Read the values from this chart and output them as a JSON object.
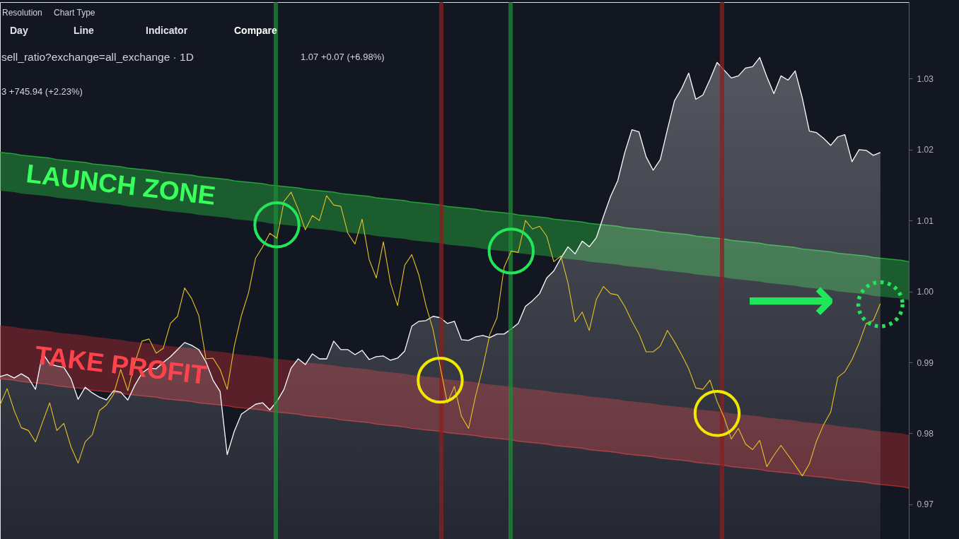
{
  "chart_data": {
    "type": "line",
    "categories": [
      null,
      null,
      null,
      null,
      null,
      null,
      null,
      null,
      null,
      null,
      null,
      null,
      null,
      null,
      null,
      null,
      null,
      null,
      null,
      null,
      null,
      null,
      null,
      null,
      null,
      null,
      null,
      null,
      null,
      null,
      null,
      null,
      null,
      null,
      null,
      null,
      null,
      null,
      null,
      null,
      null,
      null,
      null,
      null,
      null,
      null,
      null,
      null,
      null,
      null,
      null,
      null,
      null,
      null,
      null,
      null,
      null,
      null,
      null,
      null,
      null,
      null,
      null,
      null,
      null,
      null,
      null,
      null,
      null,
      null,
      null,
      null,
      null,
      null,
      null,
      null,
      null,
      null,
      null,
      null,
      null,
      null,
      null,
      null,
      null,
      null,
      null,
      null,
      null,
      null,
      null,
      null,
      null,
      null,
      null,
      null,
      null,
      null,
      null,
      null,
      null,
      null,
      null,
      null,
      null,
      null,
      null,
      null,
      null,
      null,
      null,
      null,
      null,
      null,
      null,
      null,
      null,
      null,
      null,
      null,
      null,
      null,
      null,
      null,
      null,
      null,
      null,
      null,
      null
    ],
    "ylim": [
      0.9648,
      1.0408
    ],
    "yticks": [
      0.97,
      0.98,
      0.99,
      {
        "value": 1,
        "label": "1.00"
      },
      1.01,
      1.02,
      1.03
    ],
    "tick_labels": "y",
    "series": [
      {
        "type": "area",
        "color": "#ffffff",
        "values": [
          0.988,
          0.9883,
          0.9878,
          0.9884,
          0.9878,
          0.9862,
          0.9913,
          0.9898,
          0.9895,
          0.9893,
          0.9877,
          0.9848,
          0.9865,
          0.9857,
          0.9851,
          0.9847,
          0.986,
          0.9858,
          0.9847,
          0.9868,
          0.9885,
          0.9892,
          0.9891,
          0.99,
          0.9908,
          0.9918,
          0.9928,
          0.9924,
          0.9918,
          0.9901,
          0.9875,
          0.9859,
          0.977,
          0.9803,
          0.9827,
          0.9834,
          0.9841,
          0.9843,
          0.9833,
          0.9845,
          0.9862,
          0.9892,
          0.9905,
          0.9897,
          0.9912,
          0.9905,
          0.9905,
          0.993,
          0.9918,
          0.9918,
          0.9911,
          0.9917,
          0.9904,
          0.9908,
          0.9909,
          0.9903,
          0.9906,
          0.9916,
          0.9951,
          0.9958,
          0.9959,
          0.9965,
          0.9963,
          0.9955,
          0.9958,
          0.9932,
          0.9931,
          0.9936,
          0.9938,
          0.9935,
          0.994,
          0.994,
          0.9947,
          0.9955,
          0.9979,
          0.9987,
          0.9997,
          1.0019,
          1.0029,
          1.0047,
          1.0063,
          1.0053,
          1.0071,
          1.0063,
          1.0076,
          1.0106,
          1.0134,
          1.0156,
          1.0196,
          1.0228,
          1.0225,
          1.019,
          1.0171,
          1.0186,
          1.0228,
          1.0269,
          1.0286,
          1.0308,
          1.0271,
          1.0277,
          1.0299,
          1.0323,
          1.0312,
          1.0301,
          1.0304,
          1.0315,
          1.0317,
          1.033,
          1.0303,
          1.0279,
          1.0304,
          1.0298,
          1.0311,
          1.0273,
          1.0226,
          1.0224,
          1.0216,
          1.0206,
          1.0218,
          1.0221,
          1.0183,
          1.02,
          1.0199,
          1.0192,
          1.0196,
          null,
          null,
          null,
          null
        ]
      },
      {
        "color": "#e6c229",
        "values": [
          0.984,
          0.9863,
          0.9832,
          0.9808,
          0.9804,
          0.9788,
          0.9816,
          0.9843,
          0.9804,
          0.9814,
          0.9781,
          0.9758,
          0.9788,
          0.9798,
          0.9832,
          0.984,
          0.9855,
          0.989,
          0.986,
          0.99,
          0.993,
          0.9933,
          0.9913,
          0.992,
          0.9955,
          0.9965,
          1.0005,
          0.999,
          0.9966,
          0.9905,
          0.9906,
          0.989,
          0.9862,
          0.9923,
          0.9966,
          0.9998,
          1.0047,
          1.0063,
          1.0082,
          1.0075,
          1.0127,
          1.014,
          1.0116,
          1.0087,
          1.0107,
          1.01,
          1.0135,
          1.0122,
          1.012,
          1.0082,
          1.0067,
          1.0102,
          1.0045,
          1.0019,
          1.007,
          1.0012,
          0.998,
          1.0037,
          1.0052,
          1.0023,
          0.998,
          0.9946,
          0.9894,
          0.9843,
          0.9866,
          0.9824,
          0.9807,
          0.9853,
          0.9893,
          0.994,
          0.9963,
          1.0034,
          1.0057,
          1.0055,
          1.01,
          1.0088,
          1.0092,
          1.0078,
          1.0042,
          1.005,
          1.0012,
          0.9957,
          0.9971,
          0.9945,
          0.9989,
          1.0007,
          0.9997,
          0.9995,
          0.9979,
          0.9958,
          0.994,
          0.9915,
          0.9915,
          0.9923,
          0.9945,
          0.9929,
          0.9911,
          0.9891,
          0.9864,
          0.9862,
          0.9875,
          0.9845,
          0.9822,
          0.9792,
          0.9807,
          0.9785,
          0.9777,
          0.979,
          0.9753,
          0.9769,
          0.9783,
          0.9769,
          0.9755,
          0.974,
          0.9757,
          0.9789,
          0.9812,
          0.983,
          0.9879,
          0.9887,
          0.9904,
          0.9927,
          0.9955,
          0.9959,
          0.9983,
          null,
          null,
          null,
          null
        ]
      },
      {
        "name": "LAUNCH ZONE",
        "color": "#24a33a",
        "values": [
          1.0196,
          1.0195,
          1.0194,
          1.0192,
          1.0191,
          1.019,
          1.0189,
          1.0188,
          1.0186,
          1.0185,
          1.0184,
          1.0183,
          1.0182,
          1.018,
          1.0179,
          1.0178,
          1.0177,
          1.0176,
          1.0174,
          1.0173,
          1.0172,
          1.0171,
          1.017,
          1.0168,
          1.0167,
          1.0166,
          1.0165,
          1.0164,
          1.0162,
          1.0161,
          1.016,
          1.0159,
          1.0158,
          1.0156,
          1.0155,
          1.0154,
          1.0153,
          1.0152,
          1.015,
          1.0149,
          1.0148,
          1.0147,
          1.0146,
          1.0144,
          1.0143,
          1.0142,
          1.0141,
          1.014,
          1.0138,
          1.0137,
          1.0136,
          1.0135,
          1.0134,
          1.0132,
          1.0131,
          1.013,
          1.0129,
          1.0128,
          1.0126,
          1.0125,
          1.0124,
          1.0123,
          1.0122,
          1.012,
          1.0119,
          1.0118,
          1.0117,
          1.0116,
          1.0114,
          1.0113,
          1.0112,
          1.0111,
          1.011,
          1.0108,
          1.0107,
          1.0106,
          1.0105,
          1.0104,
          1.0102,
          1.0101,
          1.01,
          1.0099,
          1.0098,
          1.0096,
          1.0095,
          1.0094,
          1.0093,
          1.0092,
          1.009,
          1.0089,
          1.0088,
          1.0087,
          1.0086,
          1.0084,
          1.0083,
          1.0082,
          1.0081,
          1.008,
          1.0078,
          1.0077,
          1.0076,
          1.0075,
          1.0074,
          1.0072,
          1.0071,
          1.007,
          1.0069,
          1.0068,
          1.0066,
          1.0065,
          1.0064,
          1.0063,
          1.0062,
          1.006,
          1.0059,
          1.0058,
          1.0057,
          1.0056,
          1.0054,
          1.0053,
          1.0052,
          1.0051,
          1.005,
          1.0048,
          1.0047,
          1.0046,
          1.0045,
          1.0044,
          1.0042
        ],
        "upper": [
          1.0196,
          1.0195,
          1.0194,
          1.0192,
          1.0191,
          1.019,
          1.0189,
          1.0188,
          1.0186,
          1.0185,
          1.0184,
          1.0183,
          1.0182,
          1.018,
          1.0179,
          1.0178,
          1.0177,
          1.0176,
          1.0174,
          1.0173,
          1.0172,
          1.0171,
          1.017,
          1.0168,
          1.0167,
          1.0166,
          1.0165,
          1.0164,
          1.0162,
          1.0161,
          1.016,
          1.0159,
          1.0158,
          1.0156,
          1.0155,
          1.0154,
          1.0153,
          1.0152,
          1.015,
          1.0149,
          1.0148,
          1.0147,
          1.0146,
          1.0144,
          1.0143,
          1.0142,
          1.0141,
          1.014,
          1.0138,
          1.0137,
          1.0136,
          1.0135,
          1.0134,
          1.0132,
          1.0131,
          1.013,
          1.0129,
          1.0128,
          1.0126,
          1.0125,
          1.0124,
          1.0123,
          1.0122,
          1.012,
          1.0119,
          1.0118,
          1.0117,
          1.0116,
          1.0114,
          1.0113,
          1.0112,
          1.0111,
          1.011,
          1.0108,
          1.0107,
          1.0106,
          1.0105,
          1.0104,
          1.0102,
          1.0101,
          1.01,
          1.0099,
          1.0098,
          1.0096,
          1.0095,
          1.0094,
          1.0093,
          1.0092,
          1.009,
          1.0089,
          1.0088,
          1.0087,
          1.0086,
          1.0084,
          1.0083,
          1.0082,
          1.0081,
          1.008,
          1.0078,
          1.0077,
          1.0076,
          1.0075,
          1.0074,
          1.0072,
          1.0071,
          1.007,
          1.0069,
          1.0068,
          1.0066,
          1.0065,
          1.0064,
          1.0063,
          1.0062,
          1.006,
          1.0059,
          1.0058,
          1.0057,
          1.0056,
          1.0054,
          1.0053,
          1.0052,
          1.0051,
          1.005,
          1.0048,
          1.0047,
          1.0046,
          1.0045,
          1.0044,
          1.0042
        ],
        "lower": [
          1.0142,
          1.0141,
          1.014,
          1.0138,
          1.0137,
          1.0136,
          1.0135,
          1.0134,
          1.0132,
          1.0131,
          1.013,
          1.0129,
          1.0128,
          1.0126,
          1.0125,
          1.0124,
          1.0123,
          1.0122,
          1.012,
          1.0119,
          1.0118,
          1.0117,
          1.0116,
          1.0114,
          1.0113,
          1.0112,
          1.0111,
          1.011,
          1.0108,
          1.0107,
          1.0106,
          1.0105,
          1.0104,
          1.0102,
          1.0101,
          1.01,
          1.0099,
          1.0098,
          1.0096,
          1.0095,
          1.0094,
          1.0093,
          1.0092,
          1.009,
          1.0089,
          1.0088,
          1.0087,
          1.0086,
          1.0084,
          1.0083,
          1.0082,
          1.0081,
          1.008,
          1.0078,
          1.0077,
          1.0076,
          1.0075,
          1.0074,
          1.0072,
          1.0071,
          1.007,
          1.0069,
          1.0068,
          1.0066,
          1.0065,
          1.0064,
          1.0063,
          1.0062,
          1.006,
          1.0059,
          1.0058,
          1.0057,
          1.0056,
          1.0054,
          1.0053,
          1.0052,
          1.0051,
          1.005,
          1.0048,
          1.0047,
          1.0046,
          1.0045,
          1.0044,
          1.0042,
          1.0041,
          1.004,
          1.0039,
          1.0038,
          1.0036,
          1.0035,
          1.0034,
          1.0033,
          1.0032,
          1.003,
          1.0029,
          1.0028,
          1.0027,
          1.0026,
          1.0024,
          1.0023,
          1.0022,
          1.0021,
          1.002,
          1.0018,
          1.0017,
          1.0016,
          1.0015,
          1.0014,
          1.0012,
          1.0011,
          1.001,
          1.0009,
          1.0008,
          1.0006,
          1.0005,
          1.0004,
          1.0003,
          1.0002,
          1.0,
          0.9999,
          0.9998,
          0.9997,
          0.9996,
          0.9994,
          0.9993,
          0.9992,
          0.9991,
          0.999,
          0.9988
        ]
      },
      {
        "name": "TAKE PROFIT",
        "color": "#a02a30",
        "values": [
          0.9877,
          0.9876,
          0.9875,
          0.9873,
          0.9872,
          0.9871,
          0.987,
          0.9869,
          0.9867,
          0.9866,
          0.9865,
          0.9864,
          0.9863,
          0.9861,
          0.986,
          0.9859,
          0.9858,
          0.9857,
          0.9855,
          0.9854,
          0.9853,
          0.9852,
          0.9851,
          0.9849,
          0.9848,
          0.9847,
          0.9846,
          0.9845,
          0.9843,
          0.9842,
          0.9841,
          0.984,
          0.9839,
          0.9837,
          0.9836,
          0.9835,
          0.9834,
          0.9833,
          0.9831,
          0.983,
          0.9829,
          0.9828,
          0.9827,
          0.9825,
          0.9824,
          0.9823,
          0.9822,
          0.9821,
          0.9819,
          0.9818,
          0.9817,
          0.9816,
          0.9815,
          0.9813,
          0.9812,
          0.9811,
          0.981,
          0.9809,
          0.9807,
          0.9806,
          0.9805,
          0.9804,
          0.9803,
          0.9801,
          0.98,
          0.9799,
          0.9798,
          0.9797,
          0.9795,
          0.9794,
          0.9793,
          0.9792,
          0.9791,
          0.9789,
          0.9788,
          0.9787,
          0.9786,
          0.9785,
          0.9783,
          0.9782,
          0.9781,
          0.978,
          0.9779,
          0.9777,
          0.9776,
          0.9775,
          0.9774,
          0.9773,
          0.9771,
          0.977,
          0.9769,
          0.9768,
          0.9767,
          0.9765,
          0.9764,
          0.9763,
          0.9762,
          0.9761,
          0.9759,
          0.9758,
          0.9757,
          0.9756,
          0.9755,
          0.9753,
          0.9752,
          0.9751,
          0.975,
          0.9749,
          0.9747,
          0.9746,
          0.9745,
          0.9744,
          0.9743,
          0.9741,
          0.974,
          0.9739,
          0.9738,
          0.9737,
          0.9735,
          0.9734,
          0.9733,
          0.9732,
          0.9731,
          0.9729,
          0.9728,
          0.9727,
          0.9726,
          0.9725,
          0.9723
        ],
        "lower": [
          0.9877,
          0.9876,
          0.9875,
          0.9873,
          0.9872,
          0.9871,
          0.987,
          0.9869,
          0.9867,
          0.9866,
          0.9865,
          0.9864,
          0.9863,
          0.9861,
          0.986,
          0.9859,
          0.9858,
          0.9857,
          0.9855,
          0.9854,
          0.9853,
          0.9852,
          0.9851,
          0.9849,
          0.9848,
          0.9847,
          0.9846,
          0.9845,
          0.9843,
          0.9842,
          0.9841,
          0.984,
          0.9839,
          0.9837,
          0.9836,
          0.9835,
          0.9834,
          0.9833,
          0.9831,
          0.983,
          0.9829,
          0.9828,
          0.9827,
          0.9825,
          0.9824,
          0.9823,
          0.9822,
          0.9821,
          0.9819,
          0.9818,
          0.9817,
          0.9816,
          0.9815,
          0.9813,
          0.9812,
          0.9811,
          0.981,
          0.9809,
          0.9807,
          0.9806,
          0.9805,
          0.9804,
          0.9803,
          0.9801,
          0.98,
          0.9799,
          0.9798,
          0.9797,
          0.9795,
          0.9794,
          0.9793,
          0.9792,
          0.9791,
          0.9789,
          0.9788,
          0.9787,
          0.9786,
          0.9785,
          0.9783,
          0.9782,
          0.9781,
          0.978,
          0.9779,
          0.9777,
          0.9776,
          0.9775,
          0.9774,
          0.9773,
          0.9771,
          0.977,
          0.9769,
          0.9768,
          0.9767,
          0.9765,
          0.9764,
          0.9763,
          0.9762,
          0.9761,
          0.9759,
          0.9758,
          0.9757,
          0.9756,
          0.9755,
          0.9753,
          0.9752,
          0.9751,
          0.975,
          0.9749,
          0.9747,
          0.9746,
          0.9745,
          0.9744,
          0.9743,
          0.9741,
          0.974,
          0.9739,
          0.9738,
          0.9737,
          0.9735,
          0.9734,
          0.9733,
          0.9732,
          0.9731,
          0.9729,
          0.9728,
          0.9727,
          0.9726,
          0.9725,
          0.9723
        ],
        "upper": [
          0.9952,
          0.9951,
          0.995,
          0.9948,
          0.9947,
          0.9946,
          0.9945,
          0.9944,
          0.9942,
          0.9941,
          0.994,
          0.9939,
          0.9938,
          0.9936,
          0.9935,
          0.9934,
          0.9933,
          0.9932,
          0.993,
          0.9929,
          0.9928,
          0.9927,
          0.9926,
          0.9924,
          0.9923,
          0.9922,
          0.9921,
          0.992,
          0.9918,
          0.9917,
          0.9916,
          0.9915,
          0.9914,
          0.9912,
          0.9911,
          0.991,
          0.9909,
          0.9908,
          0.9906,
          0.9905,
          0.9904,
          0.9903,
          0.9902,
          0.99,
          0.9899,
          0.9898,
          0.9897,
          0.9896,
          0.9894,
          0.9893,
          0.9892,
          0.9891,
          0.989,
          0.9888,
          0.9887,
          0.9886,
          0.9885,
          0.9884,
          0.9882,
          0.9881,
          0.988,
          0.9879,
          0.9878,
          0.9876,
          0.9875,
          0.9874,
          0.9873,
          0.9872,
          0.987,
          0.9869,
          0.9868,
          0.9867,
          0.9866,
          0.9864,
          0.9863,
          0.9862,
          0.9861,
          0.986,
          0.9858,
          0.9857,
          0.9856,
          0.9855,
          0.9854,
          0.9852,
          0.9851,
          0.985,
          0.9849,
          0.9848,
          0.9846,
          0.9845,
          0.9844,
          0.9843,
          0.9842,
          0.984,
          0.9839,
          0.9838,
          0.9837,
          0.9836,
          0.9834,
          0.9833,
          0.9832,
          0.9831,
          0.983,
          0.9828,
          0.9827,
          0.9826,
          0.9825,
          0.9824,
          0.9822,
          0.9821,
          0.982,
          0.9819,
          0.9818,
          0.9816,
          0.9815,
          0.9814,
          0.9813,
          0.9812,
          0.981,
          0.9809,
          0.9808,
          0.9807,
          0.9806,
          0.9804,
          0.9803,
          0.9802,
          0.9801,
          0.98,
          0.9798
        ]
      },
      {
        "type": "scatter",
        "color": "#22e55a",
        "marker": "circle",
        "values": [
          null,
          null,
          null,
          null,
          null,
          null,
          null,
          null,
          null,
          null,
          null,
          null,
          null,
          null,
          null,
          null,
          null,
          null,
          null,
          null,
          null,
          null,
          null,
          null,
          null,
          null,
          null,
          null,
          null,
          null,
          null,
          null,
          null,
          null,
          null,
          null,
          null,
          null,
          null,
          1.0094,
          null,
          null,
          null,
          null,
          null,
          null,
          null,
          null,
          null,
          null,
          null,
          null,
          null,
          null,
          null,
          null,
          null,
          null,
          null,
          null,
          null,
          null,
          null,
          null,
          null,
          null,
          null,
          null,
          null,
          null,
          null,
          null,
          1.0057,
          null,
          null,
          null,
          null,
          null,
          null,
          null,
          null,
          null,
          null,
          null,
          null,
          null,
          null,
          null,
          null,
          null,
          null,
          null,
          null,
          null,
          null,
          null,
          null,
          null,
          null,
          null,
          null,
          null,
          null,
          null,
          null,
          null,
          null,
          null,
          null,
          null,
          null,
          null,
          null,
          null,
          null,
          null,
          null,
          null,
          null,
          null,
          null,
          null,
          null,
          null,
          null,
          null,
          null,
          null,
          null
        ]
      },
      {
        "type": "scatter",
        "color": "#f0e800",
        "marker": "circle",
        "values": [
          null,
          null,
          null,
          null,
          null,
          null,
          null,
          null,
          null,
          null,
          null,
          null,
          null,
          null,
          null,
          null,
          null,
          null,
          null,
          null,
          null,
          null,
          null,
          null,
          null,
          null,
          null,
          null,
          null,
          null,
          null,
          null,
          null,
          null,
          null,
          null,
          null,
          null,
          null,
          null,
          null,
          null,
          null,
          null,
          null,
          null,
          null,
          null,
          null,
          null,
          null,
          null,
          null,
          null,
          null,
          null,
          null,
          null,
          null,
          null,
          null,
          null,
          0.9875,
          null,
          null,
          null,
          null,
          null,
          null,
          null,
          null,
          null,
          null,
          null,
          null,
          null,
          null,
          null,
          null,
          null,
          null,
          null,
          null,
          null,
          null,
          null,
          null,
          null,
          null,
          null,
          null,
          null,
          null,
          null,
          null,
          null,
          null,
          null,
          null,
          null,
          null,
          0.9828,
          null,
          null,
          null,
          null,
          null,
          null,
          null,
          null,
          null,
          null,
          null,
          null,
          null,
          null,
          null,
          null,
          null,
          null,
          null,
          null,
          null,
          null,
          null,
          null,
          null,
          null,
          null
        ]
      },
      {
        "type": "scatter",
        "color": "#22e55a",
        "marker": "circle",
        "line_style": "dotted",
        "values": [
          null,
          null,
          null,
          null,
          null,
          null,
          null,
          null,
          null,
          null,
          null,
          null,
          null,
          null,
          null,
          null,
          null,
          null,
          null,
          null,
          null,
          null,
          null,
          null,
          null,
          null,
          null,
          null,
          null,
          null,
          null,
          null,
          null,
          null,
          null,
          null,
          null,
          null,
          null,
          null,
          null,
          null,
          null,
          null,
          null,
          null,
          null,
          null,
          null,
          null,
          null,
          null,
          null,
          null,
          null,
          null,
          null,
          null,
          null,
          null,
          null,
          null,
          null,
          null,
          null,
          null,
          null,
          null,
          null,
          null,
          null,
          null,
          null,
          null,
          null,
          null,
          null,
          null,
          null,
          null,
          null,
          null,
          null,
          null,
          null,
          null,
          null,
          null,
          null,
          null,
          null,
          null,
          null,
          null,
          null,
          null,
          null,
          null,
          null,
          null,
          null,
          null,
          null,
          null,
          null,
          null,
          null,
          null,
          null,
          null,
          null,
          null,
          null,
          null,
          null,
          null,
          null,
          null,
          null,
          null,
          null,
          null,
          null,
          null,
          0.9982,
          null,
          null,
          null,
          null
        ]
      }
    ],
    "annotations": [
      "Resolution",
      "Chart Type",
      "Day",
      "Line",
      "Indicator",
      "Compare",
      "sell_ratio?exchange=all_exchange · 1D",
      "1.07 +0.07 (+6.98%)",
      "3 +745.94 (+2.23%)",
      "⟶"
    ]
  }
}
